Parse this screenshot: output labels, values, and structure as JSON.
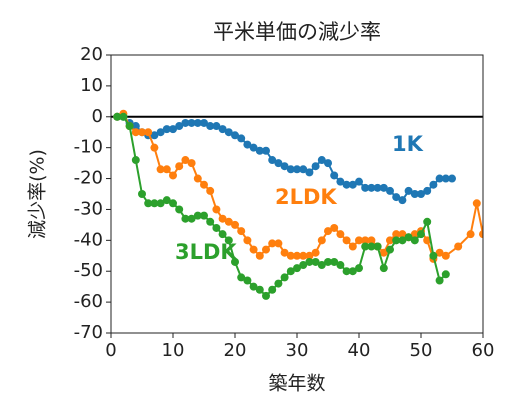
{
  "chart_data": {
    "type": "line",
    "title": "平米単価の減少率",
    "x_label": "築年数",
    "y_label": "減少率(%)",
    "xlim": [
      0,
      60
    ],
    "xticks": [
      0,
      10,
      20,
      30,
      40,
      50,
      60
    ],
    "ylim": [
      -70,
      20
    ],
    "yticks": [
      -70,
      -60,
      -50,
      -40,
      -30,
      -20,
      -10,
      0,
      10,
      20
    ],
    "hline": 0,
    "series": [
      {
        "name": "1K",
        "color": "#1f77b4",
        "x": [
          1,
          2,
          3,
          4,
          5,
          6,
          7,
          8,
          9,
          10,
          11,
          12,
          13,
          14,
          15,
          16,
          17,
          18,
          19,
          20,
          21,
          22,
          23,
          24,
          25,
          26,
          27,
          28,
          29,
          30,
          31,
          32,
          33,
          34,
          35,
          36,
          37,
          38,
          39,
          40,
          41,
          42,
          43,
          44,
          45,
          46,
          47,
          48,
          49,
          50,
          51,
          52,
          53,
          54,
          55
        ],
        "values": [
          0,
          0,
          -2,
          -3,
          -5,
          -6,
          -6,
          -5,
          -4,
          -4,
          -3,
          -2,
          -2,
          -2,
          -2,
          -3,
          -3,
          -4,
          -5,
          -6,
          -7,
          -9,
          -10,
          -11,
          -11,
          -14,
          -15,
          -16,
          -17,
          -17,
          -17,
          -18,
          -16,
          -14,
          -15,
          -19,
          -21,
          -22,
          -22,
          -21,
          -23,
          -23,
          -23,
          -23,
          -24,
          -26,
          -27,
          -24,
          -25,
          -25,
          -24,
          -22,
          -20,
          -20,
          -20
        ]
      },
      {
        "name": "2LDK",
        "color": "#ff7f0e",
        "x": [
          1,
          2,
          3,
          4,
          5,
          6,
          7,
          8,
          9,
          10,
          11,
          12,
          13,
          14,
          15,
          16,
          17,
          18,
          19,
          20,
          21,
          22,
          23,
          24,
          25,
          26,
          27,
          28,
          29,
          30,
          31,
          32,
          33,
          34,
          35,
          36,
          37,
          38,
          39,
          40,
          41,
          42,
          43,
          44,
          45,
          46,
          47,
          48,
          49,
          50,
          51,
          52,
          53,
          54,
          56,
          58,
          59,
          60
        ],
        "values": [
          0,
          1,
          -3,
          -5,
          -5,
          -5,
          -10,
          -17,
          -17,
          -19,
          -16,
          -14,
          -15,
          -20,
          -22,
          -24,
          -30,
          -33,
          -34,
          -35,
          -37,
          -40,
          -43,
          -45,
          -43,
          -41,
          -41,
          -44,
          -45,
          -45,
          -45,
          -45,
          -44,
          -40,
          -37,
          -36,
          -38,
          -40,
          -42,
          -40,
          -40,
          -40,
          -42,
          -44,
          -40,
          -38,
          -38,
          -39,
          -38,
          -37,
          -40,
          -46,
          -44,
          -45,
          -42,
          -38,
          -28,
          -38
        ]
      },
      {
        "name": "3LDK",
        "color": "#2ca02c",
        "x": [
          1,
          2,
          3,
          4,
          5,
          6,
          7,
          8,
          9,
          10,
          11,
          12,
          13,
          14,
          15,
          16,
          17,
          18,
          19,
          20,
          21,
          22,
          23,
          24,
          25,
          26,
          27,
          28,
          29,
          30,
          31,
          32,
          33,
          34,
          35,
          36,
          37,
          38,
          39,
          40,
          41,
          42,
          43,
          44,
          45,
          46,
          47,
          48,
          49,
          50,
          51,
          52,
          53,
          54
        ],
        "values": [
          0,
          0,
          -3,
          -14,
          -25,
          -28,
          -28,
          -28,
          -27,
          -28,
          -30,
          -33,
          -33,
          -32,
          -32,
          -34,
          -36,
          -38,
          -40,
          -47,
          -52,
          -53,
          -55,
          -56,
          -58,
          -56,
          -54,
          -52,
          -50,
          -49,
          -48,
          -47,
          -47,
          -48,
          -47,
          -47,
          -48,
          -50,
          -50,
          -49,
          -42,
          -42,
          -42,
          -49,
          -43,
          -40,
          -40,
          -39,
          -40,
          -38,
          -34,
          -45,
          -53,
          -51
        ]
      }
    ]
  }
}
